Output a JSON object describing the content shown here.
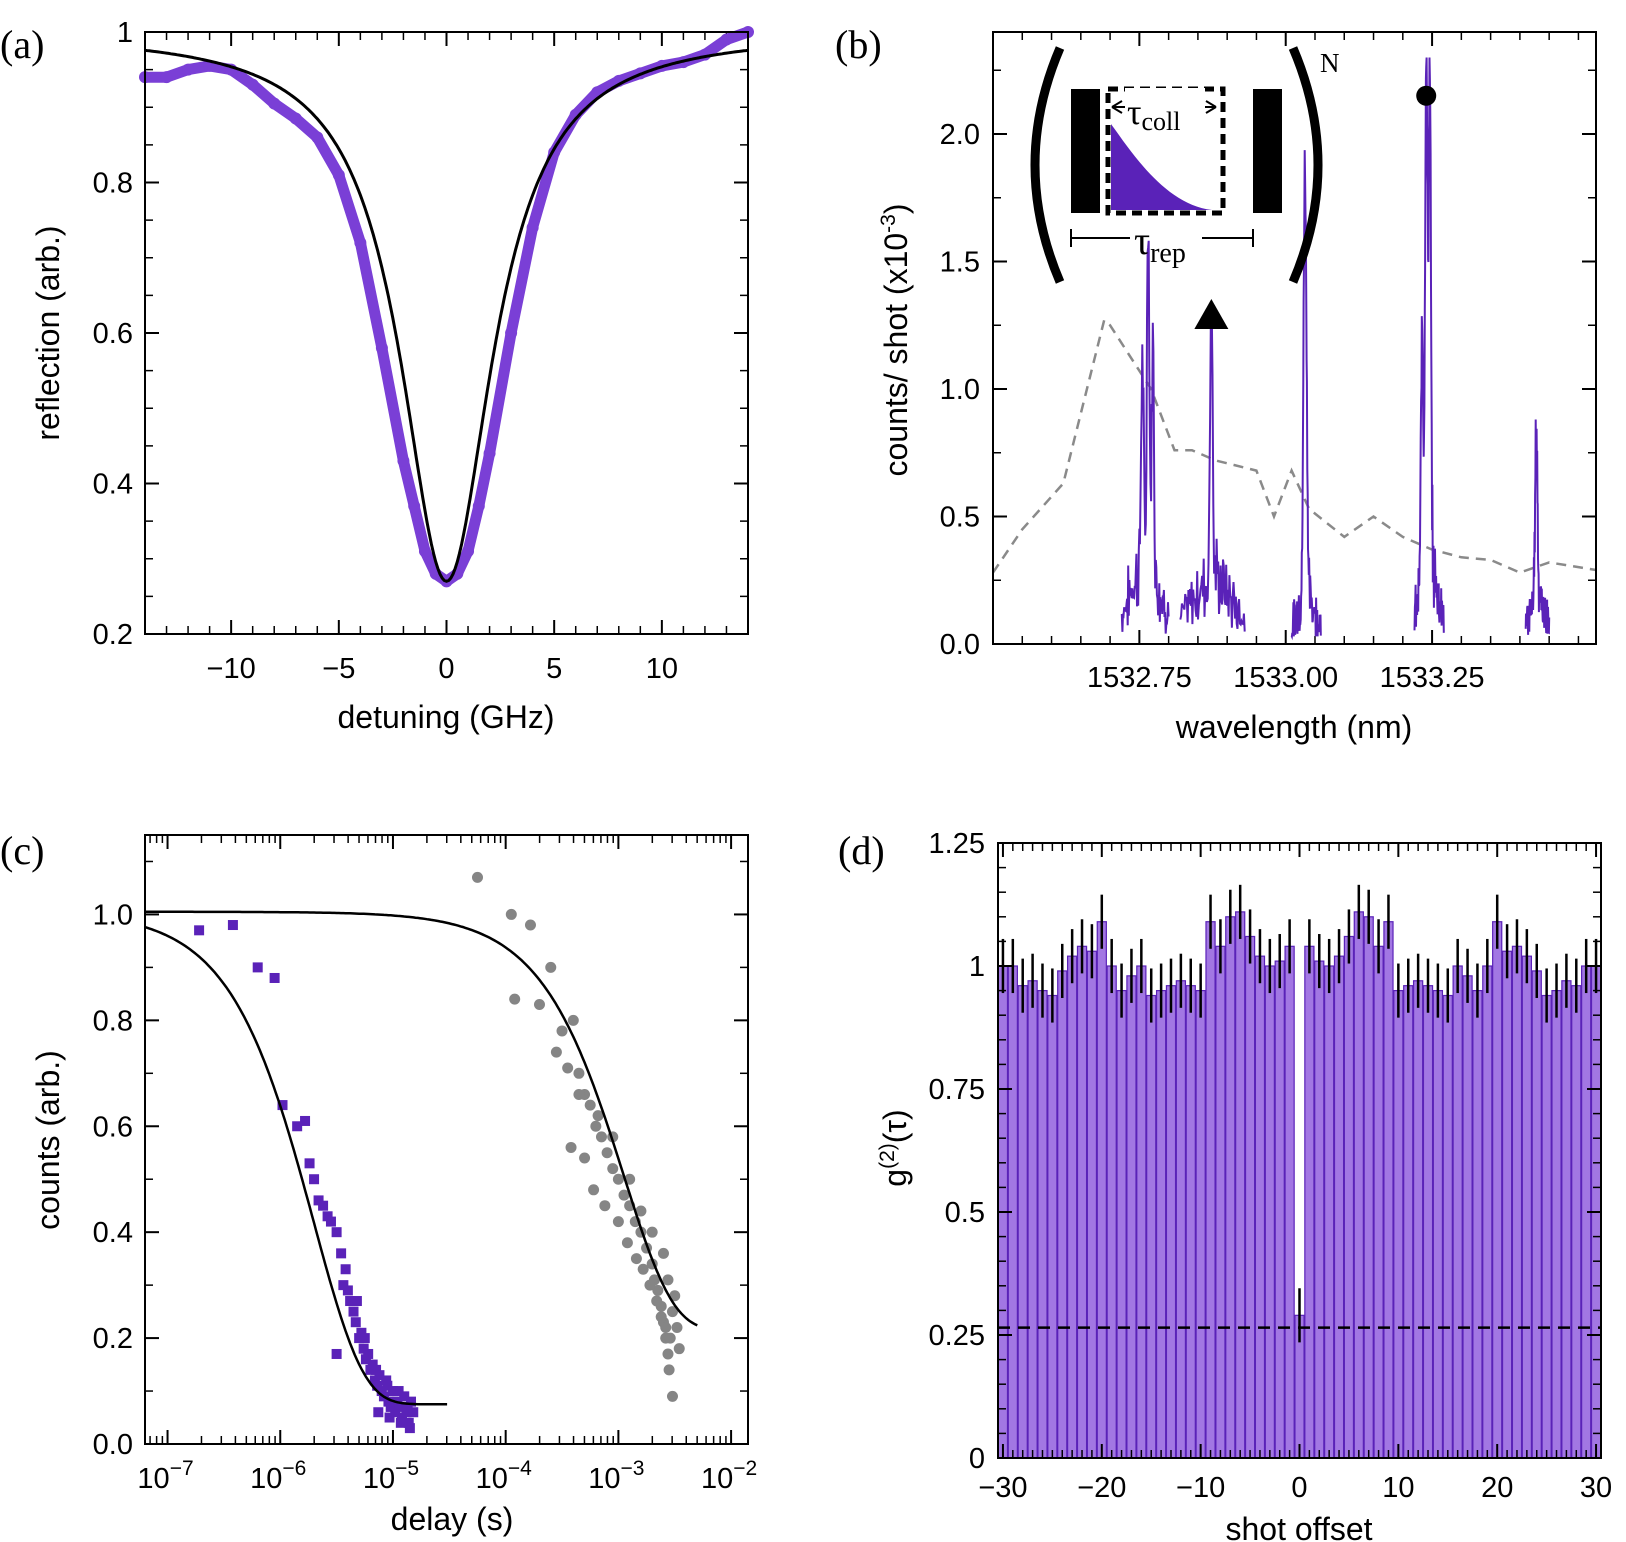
{
  "colors": {
    "purple": "#7a3fd6",
    "purple_dark": "#5a22b8",
    "purple_fill": "#a277e3",
    "gray": "#858585",
    "dashed_gray": "#8a8a8a"
  },
  "chart_data": [
    {
      "panel": "(a)",
      "type": "line",
      "xlabel": "detuning (GHz)",
      "ylabel": "reflection (arb.)",
      "xlim": [
        -14,
        14
      ],
      "ylim": [
        0.2,
        1.0
      ],
      "xticks": [
        -10,
        -5,
        0,
        5,
        10
      ],
      "xtick_labels": [
        "−10",
        "−5",
        "0",
        "5",
        "10"
      ],
      "yticks": [
        0.2,
        0.4,
        0.6,
        0.8,
        1.0
      ],
      "ytick_labels": [
        "0.2",
        "0.4",
        "0.6",
        "0.8",
        "1"
      ],
      "series": [
        {
          "name": "data",
          "style": "thick purple markers",
          "x": [
            -14,
            -13,
            -12,
            -11,
            -10,
            -9,
            -8,
            -7,
            -6,
            -5,
            -4,
            -3,
            -2,
            -1.5,
            -1,
            -0.5,
            0,
            0.5,
            1,
            1.5,
            2,
            3,
            4,
            5,
            6,
            7,
            8,
            9,
            10,
            11,
            12,
            13,
            14
          ],
          "y": [
            0.94,
            0.94,
            0.95,
            0.955,
            0.95,
            0.93,
            0.905,
            0.885,
            0.86,
            0.81,
            0.72,
            0.58,
            0.43,
            0.37,
            0.31,
            0.28,
            0.27,
            0.28,
            0.31,
            0.37,
            0.44,
            0.6,
            0.74,
            0.84,
            0.89,
            0.92,
            0.935,
            0.945,
            0.955,
            0.96,
            0.97,
            0.99,
            1.0
          ]
        },
        {
          "name": "fit",
          "style": "black line",
          "model": "lorentzian",
          "center": 0,
          "min": 0.27,
          "max": 1.0,
          "hwhm_ghz": 2.6
        }
      ]
    },
    {
      "panel": "(b)",
      "type": "line",
      "xlabel": "wavelength (nm)",
      "ylabel": "counts/ shot (x10",
      "ylabel_exp": "-3",
      "ylabel_close": ")",
      "xlim": [
        1532.5,
        1533.53
      ],
      "ylim": [
        0.0,
        2.4
      ],
      "xticks": [
        1532.75,
        1533.0,
        1533.25
      ],
      "xtick_labels": [
        "1532.75",
        "1533.00",
        "1533.25"
      ],
      "yticks": [
        0.0,
        0.5,
        1.0,
        1.5,
        2.0
      ],
      "ytick_labels": [
        "0.0",
        "0.5",
        "1.0",
        "1.5",
        "2.0"
      ],
      "dashed_series": {
        "name": "background",
        "x": [
          1532.5,
          1532.55,
          1532.62,
          1532.69,
          1532.7,
          1532.77,
          1532.81,
          1532.84,
          1532.88,
          1532.95,
          1532.98,
          1533.01,
          1533.04,
          1533.1,
          1533.15,
          1533.2,
          1533.25,
          1533.3,
          1533.35,
          1533.4,
          1533.45,
          1533.53
        ],
        "y": [
          0.28,
          0.45,
          0.63,
          1.27,
          1.25,
          1.0,
          0.76,
          0.76,
          0.72,
          0.68,
          0.5,
          0.68,
          0.53,
          0.42,
          0.5,
          0.42,
          0.37,
          0.34,
          0.33,
          0.28,
          0.32,
          0.29
        ]
      },
      "peak_groups": [
        {
          "x_range": [
            1532.72,
            1532.8
          ],
          "base": 0.25,
          "peaks": [
            {
              "x": 1532.765,
              "h": 1.4
            },
            {
              "x": 1532.755,
              "h": 0.8
            },
            {
              "x": 1532.773,
              "h": 0.9
            }
          ]
        },
        {
          "x_range": [
            1532.82,
            1532.93
          ],
          "base": 0.2,
          "peaks": [
            {
              "x": 1532.873,
              "h": 1.18
            }
          ]
        },
        {
          "x_range": [
            1533.01,
            1533.06
          ],
          "base": 0.15,
          "peaks": [
            {
              "x": 1533.032,
              "h": 1.34
            },
            {
              "x": 1533.035,
              "h": 0.8
            }
          ]
        },
        {
          "x_range": [
            1533.22,
            1533.27
          ],
          "base": 0.25,
          "peaks": [
            {
              "x": 1533.24,
              "h": 2.05
            },
            {
              "x": 1533.246,
              "h": 1.9
            },
            {
              "x": 1533.233,
              "h": 1.0
            }
          ]
        },
        {
          "x_range": [
            1533.41,
            1533.45
          ],
          "base": 0.15,
          "peaks": [
            {
              "x": 1533.428,
              "h": 0.65
            }
          ]
        }
      ],
      "markers": [
        {
          "shape": "triangle",
          "x": 1532.873,
          "y": 1.29
        },
        {
          "shape": "circle",
          "x": 1533.24,
          "y": 2.15
        }
      ],
      "inset": {
        "tau_coll": "τ",
        "tau_coll_sub": "coll",
        "tau_rep": "τ",
        "tau_rep_sub": "rep",
        "exponent": "N"
      }
    },
    {
      "panel": "(c)",
      "type": "scatter",
      "xscale": "log",
      "xlabel": "delay (s)",
      "ylabel": "counts (arb.)",
      "xlim_log10": [
        -7.2,
        -1.85
      ],
      "ylim": [
        0.0,
        1.15
      ],
      "xticks_log10": [
        -7,
        -6,
        -5,
        -4,
        -3,
        -2
      ],
      "xtick_base": "10",
      "xtick_exps": [
        "−7",
        "−6",
        "−5",
        "−4",
        "−3",
        "−2"
      ],
      "yticks": [
        0.0,
        0.2,
        0.4,
        0.6,
        0.8,
        1.0
      ],
      "ytick_labels": [
        "0.0",
        "0.2",
        "0.4",
        "0.6",
        "0.8",
        "1.0"
      ],
      "series": [
        {
          "name": "purple squares",
          "points": [
            [
              -6.72,
              0.97
            ],
            [
              -6.42,
              0.98
            ],
            [
              -6.2,
              0.9
            ],
            [
              -6.05,
              0.88
            ],
            [
              -5.98,
              0.64
            ],
            [
              -5.85,
              0.6
            ],
            [
              -5.78,
              0.61
            ],
            [
              -5.74,
              0.53
            ],
            [
              -5.7,
              0.5
            ],
            [
              -5.66,
              0.46
            ],
            [
              -5.62,
              0.45
            ],
            [
              -5.58,
              0.43
            ],
            [
              -5.55,
              0.42
            ],
            [
              -5.5,
              0.4
            ],
            [
              -5.46,
              0.36
            ],
            [
              -5.42,
              0.33
            ],
            [
              -5.4,
              0.29
            ],
            [
              -5.38,
              0.27
            ],
            [
              -5.35,
              0.25
            ],
            [
              -5.33,
              0.23
            ],
            [
              -5.3,
              0.2
            ],
            [
              -5.28,
              0.21
            ],
            [
              -5.26,
              0.18
            ],
            [
              -5.24,
              0.16
            ],
            [
              -5.22,
              0.17
            ],
            [
              -5.2,
              0.14
            ],
            [
              -5.18,
              0.15
            ],
            [
              -5.16,
              0.12
            ],
            [
              -5.14,
              0.11
            ],
            [
              -5.12,
              0.13
            ],
            [
              -5.1,
              0.1
            ],
            [
              -5.08,
              0.09
            ],
            [
              -5.06,
              0.12
            ],
            [
              -5.04,
              0.08
            ],
            [
              -5.02,
              0.07
            ],
            [
              -5.0,
              0.1
            ],
            [
              -4.98,
              0.06
            ],
            [
              -4.96,
              0.08
            ],
            [
              -4.94,
              0.07
            ],
            [
              -4.92,
              0.05
            ],
            [
              -4.9,
              0.09
            ],
            [
              -4.88,
              0.06
            ],
            [
              -4.86,
              0.04
            ],
            [
              -4.84,
              0.08
            ],
            [
              -4.82,
              0.06
            ],
            [
              -5.44,
              0.3
            ],
            [
              -5.32,
              0.27
            ],
            [
              -5.25,
              0.2
            ],
            [
              -5.15,
              0.14
            ],
            [
              -5.05,
              0.11
            ],
            [
              -4.95,
              0.1
            ],
            [
              -4.87,
              0.07
            ],
            [
              -5.5,
              0.17
            ],
            [
              -5.13,
              0.06
            ],
            [
              -5.03,
              0.05
            ],
            [
              -4.93,
              0.04
            ],
            [
              -4.85,
              0.03
            ]
          ]
        },
        {
          "name": "gray circles",
          "points": [
            [
              -4.25,
              1.07
            ],
            [
              -3.95,
              1.0
            ],
            [
              -3.78,
              0.98
            ],
            [
              -3.6,
              0.9
            ],
            [
              -3.92,
              0.84
            ],
            [
              -3.7,
              0.83
            ],
            [
              -3.5,
              0.78
            ],
            [
              -3.4,
              0.8
            ],
            [
              -3.55,
              0.74
            ],
            [
              -3.45,
              0.71
            ],
            [
              -3.35,
              0.7
            ],
            [
              -3.3,
              0.66
            ],
            [
              -3.25,
              0.64
            ],
            [
              -3.2,
              0.6
            ],
            [
              -3.15,
              0.58
            ],
            [
              -3.1,
              0.55
            ],
            [
              -3.05,
              0.52
            ],
            [
              -3.0,
              0.5
            ],
            [
              -2.95,
              0.47
            ],
            [
              -2.9,
              0.45
            ],
            [
              -2.85,
              0.42
            ],
            [
              -2.8,
              0.4
            ],
            [
              -2.75,
              0.37
            ],
            [
              -2.7,
              0.34
            ],
            [
              -2.68,
              0.31
            ],
            [
              -2.65,
              0.29
            ],
            [
              -2.62,
              0.26
            ],
            [
              -2.6,
              0.23
            ],
            [
              -2.58,
              0.2
            ],
            [
              -2.56,
              0.17
            ],
            [
              -2.55,
              0.14
            ],
            [
              -3.42,
              0.56
            ],
            [
              -3.3,
              0.54
            ],
            [
              -3.22,
              0.48
            ],
            [
              -3.12,
              0.45
            ],
            [
              -3.0,
              0.42
            ],
            [
              -2.92,
              0.38
            ],
            [
              -2.84,
              0.35
            ],
            [
              -2.78,
              0.33
            ],
            [
              -2.72,
              0.3
            ],
            [
              -2.66,
              0.27
            ],
            [
              -2.62,
              0.24
            ],
            [
              -2.58,
              0.22
            ],
            [
              -2.54,
              0.2
            ],
            [
              -2.52,
              0.25
            ],
            [
              -2.5,
              0.28
            ],
            [
              -2.56,
              0.31
            ],
            [
              -2.6,
              0.36
            ],
            [
              -2.7,
              0.4
            ],
            [
              -2.8,
              0.44
            ],
            [
              -2.9,
              0.5
            ],
            [
              -3.05,
              0.58
            ],
            [
              -3.18,
              0.62
            ],
            [
              -3.35,
              0.66
            ],
            [
              -2.52,
              0.09
            ],
            [
              -2.48,
              0.22
            ],
            [
              -2.46,
              0.18
            ]
          ]
        }
      ],
      "fits": [
        {
          "name": "purple fit",
          "A": 0.93,
          "tau_log10": -5.7,
          "offset": 0.075,
          "x_range_log10": [
            -7.2,
            -4.52
          ]
        },
        {
          "name": "gray fit",
          "A": 0.79,
          "tau_log10": -2.95,
          "offset": 0.215,
          "x_range_log10": [
            -7.2,
            -2.3
          ]
        }
      ]
    },
    {
      "panel": "(d)",
      "type": "bar",
      "xlabel": "shot offset",
      "ylabel": "g",
      "ylabel_sup": "(2)",
      "ylabel_tail": "(τ)",
      "xlim": [
        -30.5,
        30.5
      ],
      "ylim": [
        0.0,
        1.25
      ],
      "xticks": [
        -30,
        -20,
        -10,
        0,
        10,
        20,
        30
      ],
      "xtick_labels": [
        "−30",
        "−20",
        "−10",
        "0",
        "10",
        "20",
        "30"
      ],
      "yticks": [
        0.0,
        0.25,
        0.5,
        0.75,
        1.0,
        1.25
      ],
      "ytick_labels": [
        "0",
        "0.25",
        "0.5",
        "0.75",
        "1",
        "1.25"
      ],
      "dashed_level": 0.265,
      "errorbar": 0.055,
      "x": [
        -30,
        -29,
        -28,
        -27,
        -26,
        -25,
        -24,
        -23,
        -22,
        -21,
        -20,
        -19,
        -18,
        -17,
        -16,
        -15,
        -14,
        -13,
        -12,
        -11,
        -10,
        -9,
        -8,
        -7,
        -6,
        -5,
        -4,
        -3,
        -2,
        -1,
        0,
        1,
        2,
        3,
        4,
        5,
        6,
        7,
        8,
        9,
        10,
        11,
        12,
        13,
        14,
        15,
        16,
        17,
        18,
        19,
        20,
        21,
        22,
        23,
        24,
        25,
        26,
        27,
        28,
        29,
        30
      ],
      "values": [
        1.0,
        1.0,
        0.96,
        0.97,
        0.95,
        0.94,
        0.99,
        1.02,
        1.04,
        1.03,
        1.09,
        1.0,
        0.95,
        0.98,
        1.0,
        0.94,
        0.95,
        0.96,
        0.97,
        0.96,
        0.95,
        1.09,
        1.04,
        1.1,
        1.11,
        1.06,
        1.02,
        1.0,
        1.01,
        1.04,
        0.29,
        1.04,
        1.01,
        1.0,
        1.02,
        1.06,
        1.11,
        1.1,
        1.04,
        1.09,
        0.95,
        0.96,
        0.97,
        0.96,
        0.95,
        0.94,
        1.0,
        0.98,
        0.95,
        1.0,
        1.09,
        1.03,
        1.04,
        1.02,
        0.99,
        0.94,
        0.95,
        0.97,
        0.96,
        1.0,
        1.0
      ]
    }
  ]
}
